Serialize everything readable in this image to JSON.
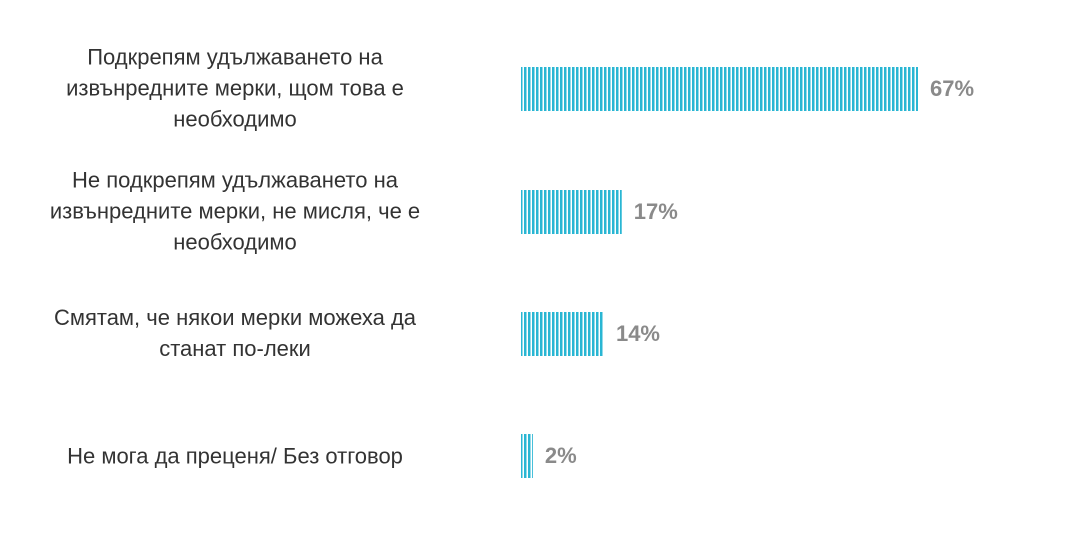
{
  "chart_data": {
    "type": "bar",
    "orientation": "horizontal",
    "categories": [
      "Подкрепям удължаването на извънредните мерки, щом това е необходимо",
      "Не подкрепям удължаването на извънредните мерки, не мисля, че е необходимо",
      "Смятам, че някои мерки можеха да станат по-леки",
      "Не мога да преценя/ Без отговор"
    ],
    "values": [
      67,
      17,
      14,
      2
    ],
    "value_labels": [
      "67%",
      "17%",
      "14%",
      "2%"
    ],
    "xlim": [
      0,
      100
    ],
    "grid": false,
    "legend": "none",
    "bar_color": "#29b6d3",
    "bar_pattern": "vertical-stripes",
    "label_color": "#333333",
    "value_color": "#8a8a8a"
  }
}
